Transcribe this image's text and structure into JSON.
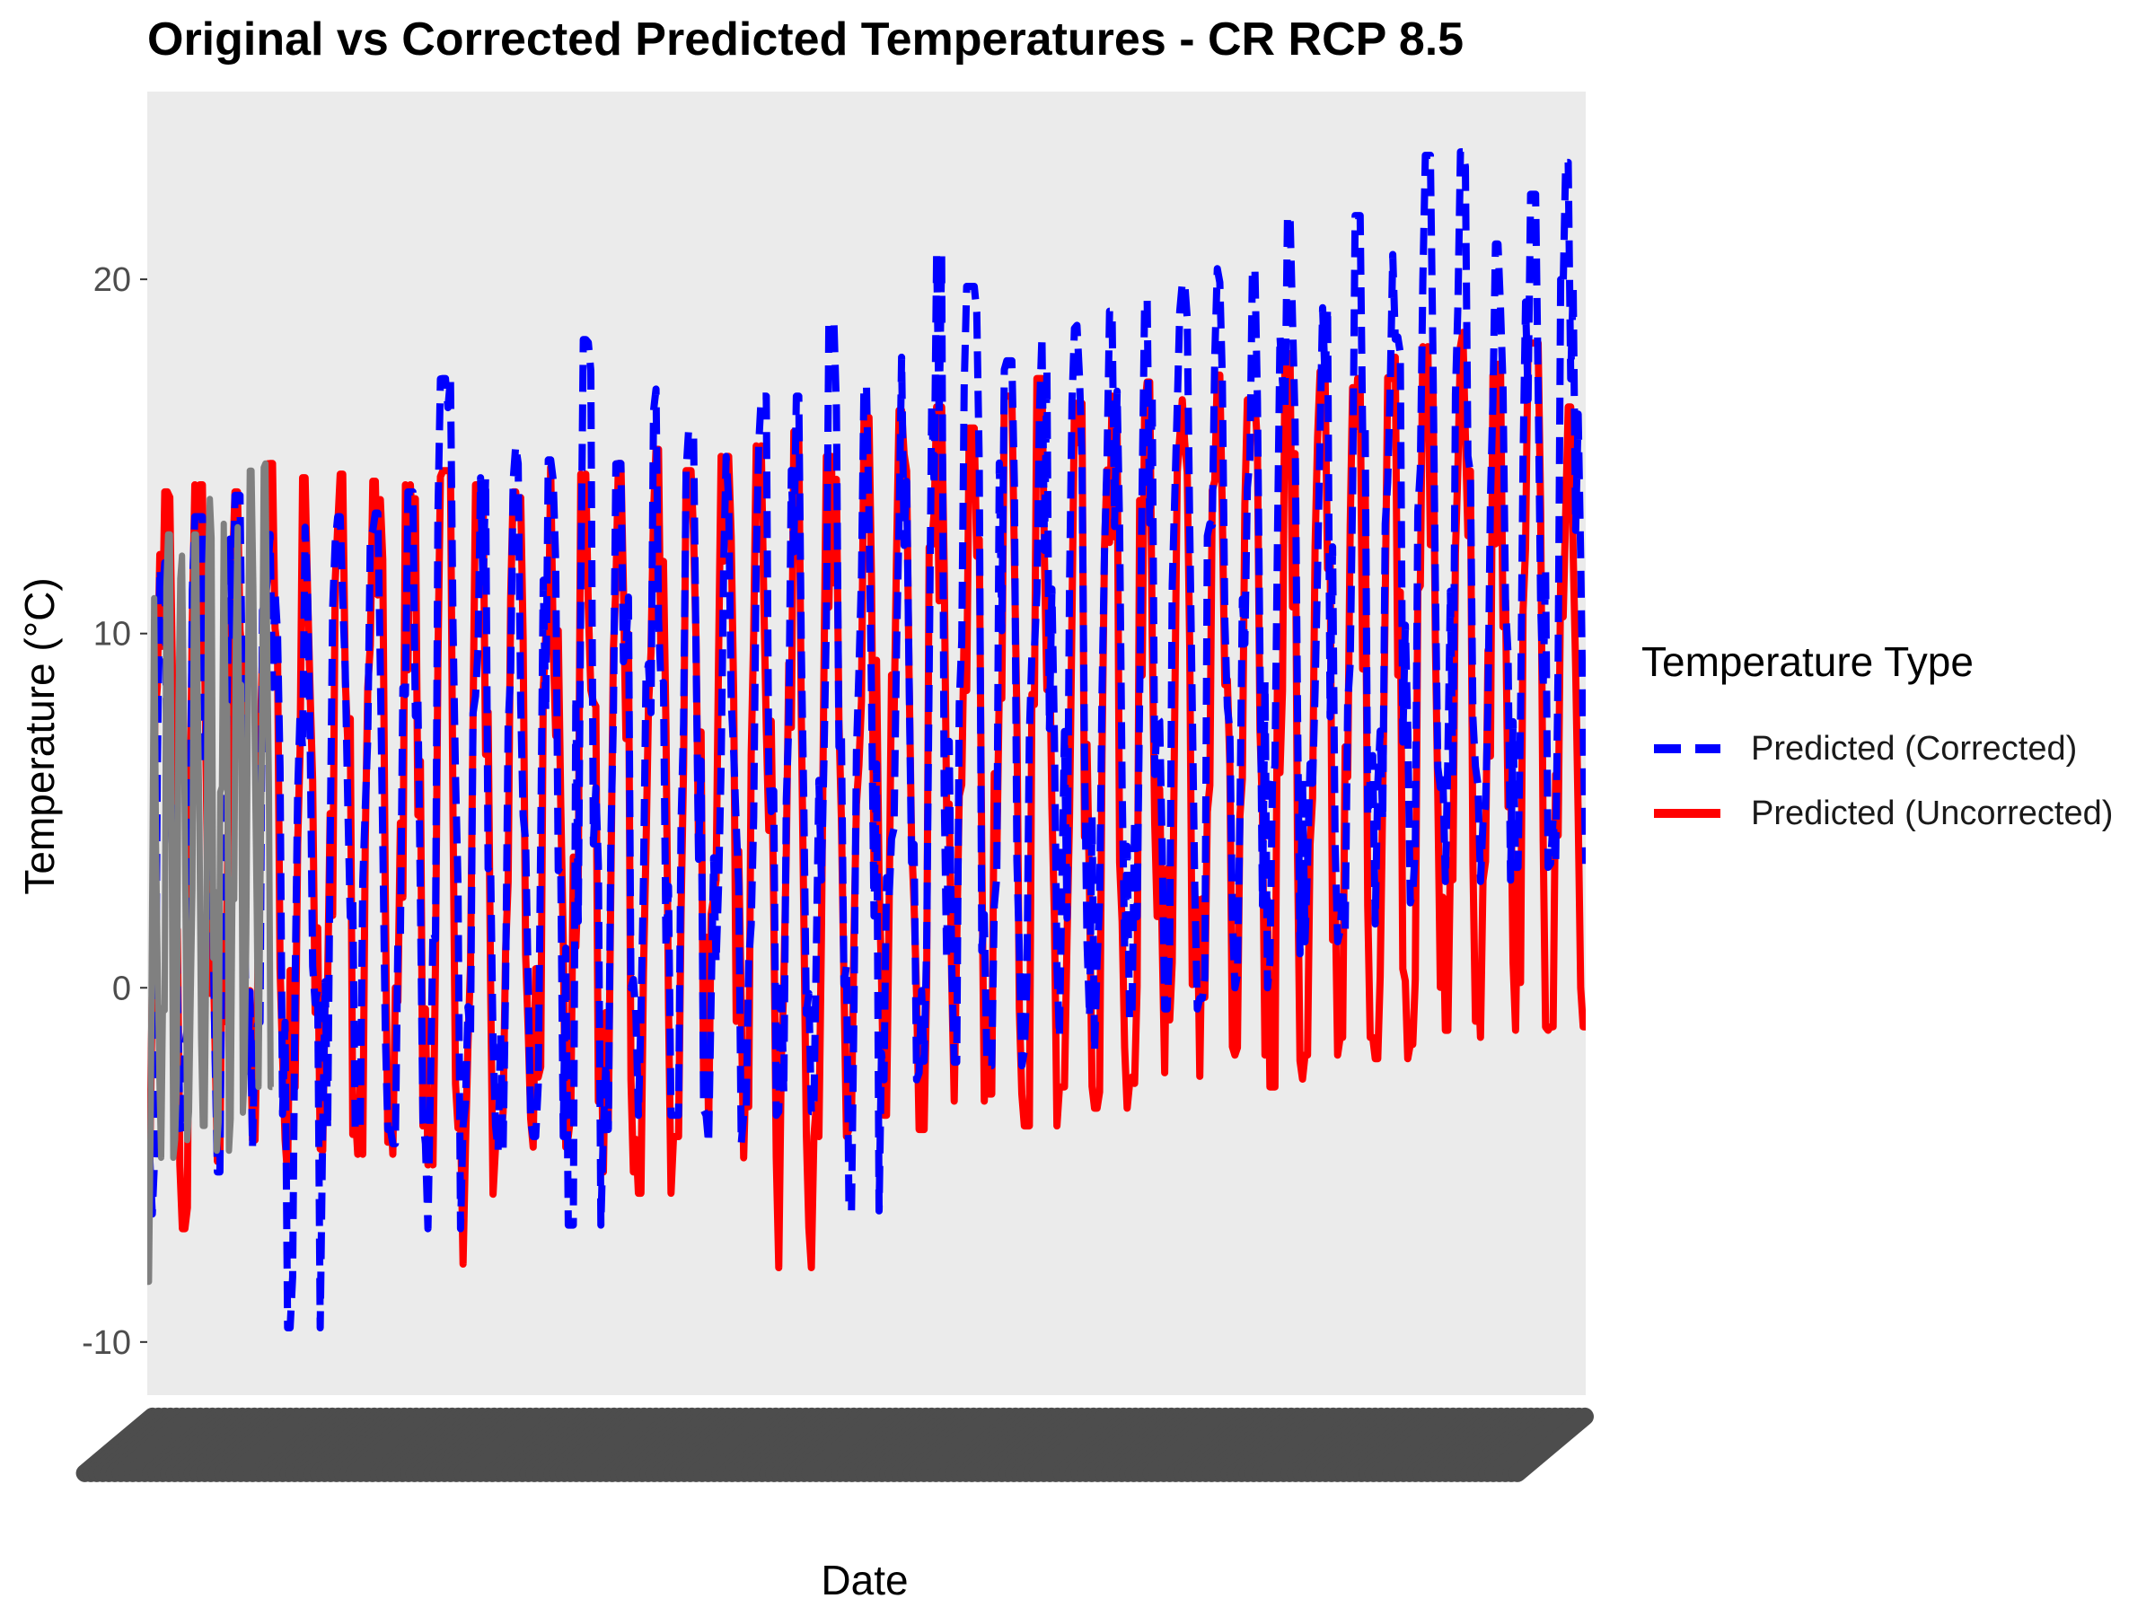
{
  "chart_data": {
    "type": "line",
    "title": "Original vs Corrected Predicted Temperatures - CR RCP 8.5",
    "xlabel": "Date",
    "ylabel": "Temperature (°C)",
    "ylim": [
      -11.5,
      25.3
    ],
    "yticks": [
      -10,
      0,
      10,
      20
    ],
    "ytick_labels": [
      "-10",
      "0",
      "10",
      "20"
    ],
    "grid": false,
    "panel_background": "#EBEBEB",
    "x_tick_labels_illegible": true,
    "legend": {
      "title": "Temperature Type",
      "position": "right",
      "entries": [
        {
          "label": "Predicted (Corrected)",
          "color": "#0000FF",
          "linetype": "dashed"
        },
        {
          "label": "Predicted (Uncorrected)",
          "color": "#FF0000",
          "linetype": "solid"
        }
      ]
    },
    "series": [
      {
        "label": "Predicted (Uncorrected)",
        "color": "#FF0000",
        "linetype": "solid",
        "cycles": 41,
        "x_start": 0.0,
        "x_end": 1.0,
        "annual_peak": [
          14.0,
          14.2,
          14.0,
          14.8,
          14.4,
          14.5,
          14.3,
          14.2,
          14.6,
          14.2,
          14.0,
          14.7,
          14.5,
          14.8,
          15.2,
          14.6,
          15.0,
          15.3,
          15.7,
          15.0,
          16.1,
          16.3,
          16.4,
          15.8,
          16.7,
          17.2,
          16.5,
          16.7,
          17.1,
          16.6,
          17.3,
          16.6,
          17.9,
          17.4,
          17.2,
          17.8,
          18.1,
          18.5,
          17.6,
          18.2,
          16.4
        ],
        "annual_trough": [
          -5.0,
          -6.8,
          -4.9,
          -4.3,
          -5.3,
          -4.6,
          -4.7,
          -4.7,
          -5.0,
          -7.8,
          -4.4,
          -4.5,
          -4.2,
          -5.2,
          -5.8,
          -4.2,
          -4.0,
          -4.8,
          -7.9,
          -4.2,
          -4.0,
          -3.6,
          -4.0,
          -3.2,
          -3.0,
          -3.9,
          -2.8,
          -3.4,
          -2.7,
          -2.4,
          -2.5,
          -1.9,
          -2.8,
          -1.9,
          -1.4,
          -2.0,
          -1.6,
          -1.2,
          -1.4,
          -1.2,
          -1.1
        ]
      },
      {
        "label": "Predicted (Corrected)",
        "color": "#0000FF",
        "linetype": "dashed",
        "cycles": 41,
        "x_start": 0.0,
        "x_end": 1.0,
        "annual_peak": [
          12.0,
          13.3,
          13.9,
          12.8,
          13.0,
          13.3,
          13.4,
          14.0,
          17.2,
          14.4,
          15.3,
          14.9,
          18.3,
          14.8,
          16.9,
          15.7,
          15.0,
          16.7,
          16.7,
          18.8,
          17.0,
          17.8,
          20.7,
          19.8,
          17.7,
          18.4,
          18.7,
          19.1,
          19.4,
          19.9,
          20.3,
          20.3,
          21.8,
          19.2,
          21.8,
          20.7,
          23.5,
          23.6,
          21.0,
          22.4,
          23.3
        ],
        "annual_trough": [
          -8.3,
          -4.1,
          -5.2,
          -4.5,
          -9.6,
          -4.0,
          -4.0,
          -4.4,
          -6.8,
          -3.9,
          -4.6,
          -4.2,
          -6.7,
          -4.0,
          -3.6,
          -3.6,
          -4.4,
          -3.6,
          -3.5,
          -3.5,
          -6.3,
          -2.6,
          -2.4,
          -2.1,
          -2.2,
          -1.8,
          -1.4,
          -1.8,
          -0.9,
          -0.6,
          -0.3,
          0.0,
          0.7,
          1.3,
          1.6,
          1.8,
          2.4,
          3.0,
          3.0,
          3.4,
          3.5
        ]
      },
      {
        "label": "Original",
        "color": "#808080",
        "linetype": "solid",
        "cycles": 9,
        "x_start": 0.0,
        "x_end": 0.087,
        "annual_peak": [
          11.0,
          12.8,
          12.2,
          12.8,
          13.8,
          13.1,
          13.0,
          14.6,
          14.8
        ],
        "annual_trough": [
          -8.3,
          -4.8,
          -4.3,
          -3.5,
          -3.9,
          -4.6,
          -3.7,
          -2.4,
          -2.8
        ]
      }
    ]
  }
}
